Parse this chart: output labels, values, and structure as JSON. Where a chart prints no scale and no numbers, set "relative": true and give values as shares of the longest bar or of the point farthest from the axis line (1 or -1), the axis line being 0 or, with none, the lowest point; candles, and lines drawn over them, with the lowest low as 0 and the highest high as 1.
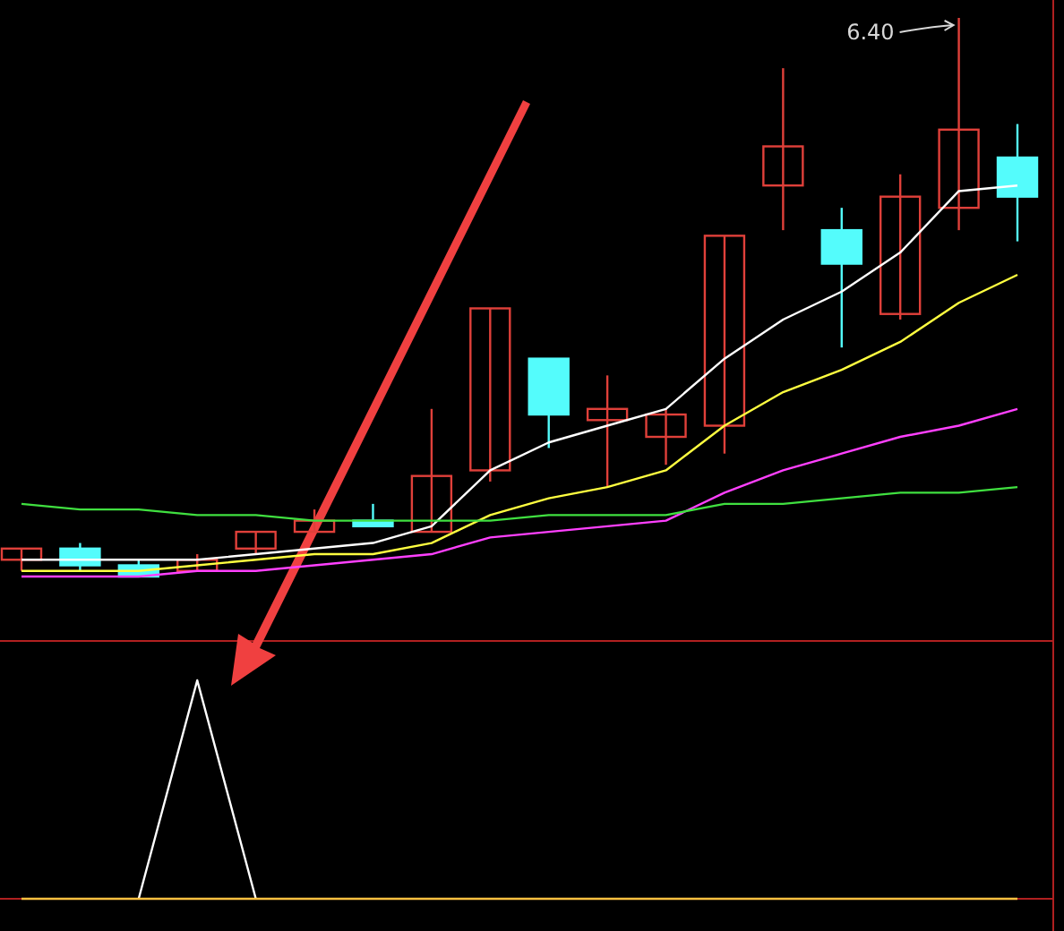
{
  "chart_data": [
    {
      "type": "candlestick",
      "relative": true,
      "annotations": [
        "6.40"
      ],
      "categories": [
        null,
        null,
        null,
        null,
        null,
        null,
        null,
        null,
        null,
        null,
        null,
        null,
        null,
        null,
        null,
        null,
        null,
        null
      ],
      "ohlc": [
        [
          0.03,
          0.05,
          0.01,
          0.05
        ],
        [
          0.05,
          0.06,
          0.01,
          0.02
        ],
        [
          0.02,
          0.03,
          0,
          0
        ],
        [
          0.01,
          0.04,
          0.01,
          0.03
        ],
        [
          0.05,
          0.08,
          0.04,
          0.08
        ],
        [
          0.08,
          0.12,
          0.08,
          0.1
        ],
        [
          0.1,
          0.13,
          0.09,
          0.09
        ],
        [
          0.08,
          0.3,
          0.08,
          0.18
        ],
        [
          0.19,
          0.48,
          0.17,
          0.48
        ],
        [
          0.39,
          0.39,
          0.23,
          0.29
        ],
        [
          0.28,
          0.36,
          0.16,
          0.3
        ],
        [
          0.25,
          0.3,
          0.2,
          0.29
        ],
        [
          0.27,
          0.61,
          0.22,
          0.61
        ],
        [
          0.7,
          0.91,
          0.62,
          0.77
        ],
        [
          0.62,
          0.66,
          0.41,
          0.56
        ],
        [
          0.47,
          0.72,
          0.46,
          0.68
        ],
        [
          0.66,
          1,
          0.62,
          0.8
        ],
        [
          0.75,
          0.81,
          0.6,
          0.68
        ]
      ],
      "series": [
        {
          "type": "line",
          "color": "#ffffff",
          "values": [
            0.03,
            0.03,
            0.03,
            0.03,
            0.04,
            0.05,
            0.06,
            0.09,
            0.19,
            0.24,
            0.27,
            0.3,
            0.39,
            0.46,
            0.51,
            0.58,
            0.69,
            0.7
          ]
        },
        {
          "type": "line",
          "color": "#ffff40",
          "values": [
            0.01,
            0.01,
            0.01,
            0.02,
            0.03,
            0.04,
            0.04,
            0.06,
            0.11,
            0.14,
            0.16,
            0.19,
            0.27,
            0.33,
            0.37,
            0.42,
            0.49,
            0.54
          ]
        },
        {
          "type": "line",
          "color": "#ff40ff",
          "values": [
            0,
            0,
            0,
            0.01,
            0.01,
            0.02,
            0.03,
            0.04,
            0.07,
            0.08,
            0.09,
            0.1,
            0.15,
            0.19,
            0.22,
            0.25,
            0.27,
            0.3
          ]
        },
        {
          "type": "line",
          "color": "#40e040",
          "values": [
            0.13,
            0.12,
            0.12,
            0.11,
            0.11,
            0.1,
            0.1,
            0.1,
            0.1,
            0.11,
            0.11,
            0.11,
            0.13,
            0.13,
            0.14,
            0.15,
            0.15,
            0.16
          ]
        }
      ]
    },
    {
      "type": "line",
      "relative": true,
      "categories": [
        null,
        null,
        null,
        null,
        null,
        null,
        null,
        null,
        null,
        null,
        null,
        null,
        null,
        null,
        null,
        null,
        null,
        null
      ],
      "series": [
        {
          "color": "#ffffff",
          "values": [
            null,
            null,
            0,
            1,
            0,
            null,
            null,
            null,
            null,
            null,
            null,
            null,
            null,
            null,
            null,
            null,
            null,
            null
          ]
        },
        {
          "color": "#ffc040",
          "values": [
            0,
            0,
            0,
            0,
            0,
            0,
            0,
            0,
            0,
            0,
            0,
            0,
            0,
            0,
            0,
            0,
            0,
            0
          ]
        }
      ]
    }
  ]
}
